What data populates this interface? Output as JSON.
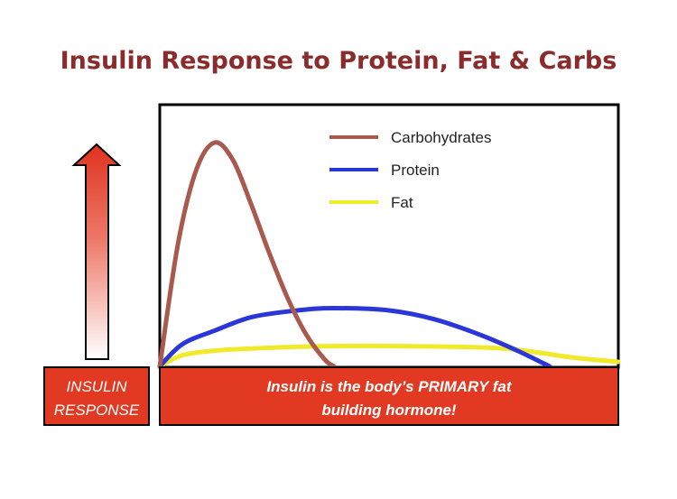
{
  "title": "Insulin Response to Protein, Fat & Carbs",
  "side_label": {
    "line1": "INSULIN",
    "line2": "RESPONSE"
  },
  "banner": {
    "line1": "Insulin is the body’s PRIMARY fat",
    "line2": "building hormone!"
  },
  "colors": {
    "title": "#8b2c2c",
    "banner": "#e23a22",
    "carbohydrates": "#a85a4e",
    "protein": "#2a36d8",
    "fat": "#f1ea2a"
  },
  "chart_data": {
    "type": "line",
    "title": "Insulin Response to Protein, Fat & Carbs",
    "xlabel": "",
    "ylabel": "INSULIN RESPONSE",
    "xlim": [
      0,
      100
    ],
    "ylim": [
      0,
      100
    ],
    "grid": false,
    "legend_position": "top-right",
    "series": [
      {
        "name": "Carbohydrates",
        "color": "#a85a4e",
        "x": [
          0,
          4,
          8,
          12,
          16,
          20,
          24,
          28,
          32,
          36,
          38
        ],
        "y": [
          0,
          55,
          88,
          100,
          92,
          72,
          50,
          30,
          14,
          3,
          0
        ]
      },
      {
        "name": "Protein",
        "color": "#2a36d8",
        "x": [
          0,
          5,
          12,
          20,
          30,
          38,
          50,
          60,
          70,
          78,
          85
        ],
        "y": [
          0,
          10,
          16,
          22,
          25,
          26,
          25,
          21,
          14,
          7,
          0
        ]
      },
      {
        "name": "Fat",
        "color": "#f1ea2a",
        "x": [
          0,
          5,
          12,
          20,
          35,
          55,
          75,
          90,
          100
        ],
        "y": [
          0,
          5,
          7,
          8,
          9,
          9,
          8,
          4,
          2
        ]
      }
    ]
  }
}
